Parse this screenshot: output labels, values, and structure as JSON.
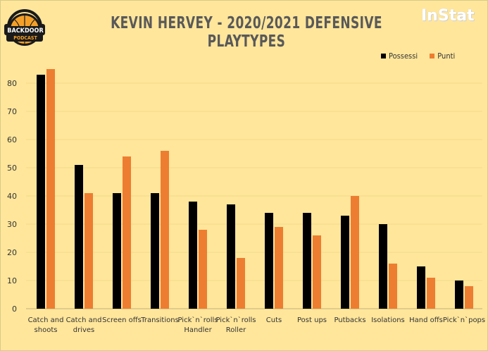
{
  "header": {
    "title": "KEVIN  HERVEY  - 2020/2021 DEFENSIVE  PLAYTYPES",
    "brand": "InStat",
    "logo_line1": "BACKDOOR",
    "logo_line2": "PODCAST"
  },
  "colors": {
    "background": "#ffe69b",
    "possessi": "#000000",
    "punti": "#ed7d31",
    "grid": "#f2d98a"
  },
  "chart_data": {
    "type": "bar",
    "title": "KEVIN  HERVEY  - 2020/2021 DEFENSIVE  PLAYTYPES",
    "xlabel": "",
    "ylabel": "",
    "ylim": [
      0,
      90
    ],
    "yticks": [
      0,
      10,
      20,
      30,
      40,
      50,
      60,
      70,
      80
    ],
    "grid": true,
    "legend_position": "top-right",
    "categories": [
      [
        "Catch and",
        "shoots"
      ],
      [
        "Catch and",
        "drives"
      ],
      [
        "Screen offs"
      ],
      [
        "Transitions"
      ],
      [
        "Pick`n`rolls",
        "Handler"
      ],
      [
        "Pick`n`rolls",
        "Roller"
      ],
      [
        "Cuts"
      ],
      [
        "Post ups"
      ],
      [
        "Putbacks"
      ],
      [
        "Isolations"
      ],
      [
        "Hand offs"
      ],
      [
        "Pick`n`pops"
      ]
    ],
    "series": [
      {
        "name": "Possessi",
        "color": "#000000",
        "values": [
          83,
          51,
          41,
          41,
          38,
          37,
          34,
          34,
          33,
          30,
          15,
          10
        ]
      },
      {
        "name": "Punti",
        "color": "#ed7d31",
        "values": [
          85,
          41,
          54,
          56,
          28,
          18,
          29,
          26,
          40,
          16,
          11,
          8
        ]
      }
    ]
  }
}
